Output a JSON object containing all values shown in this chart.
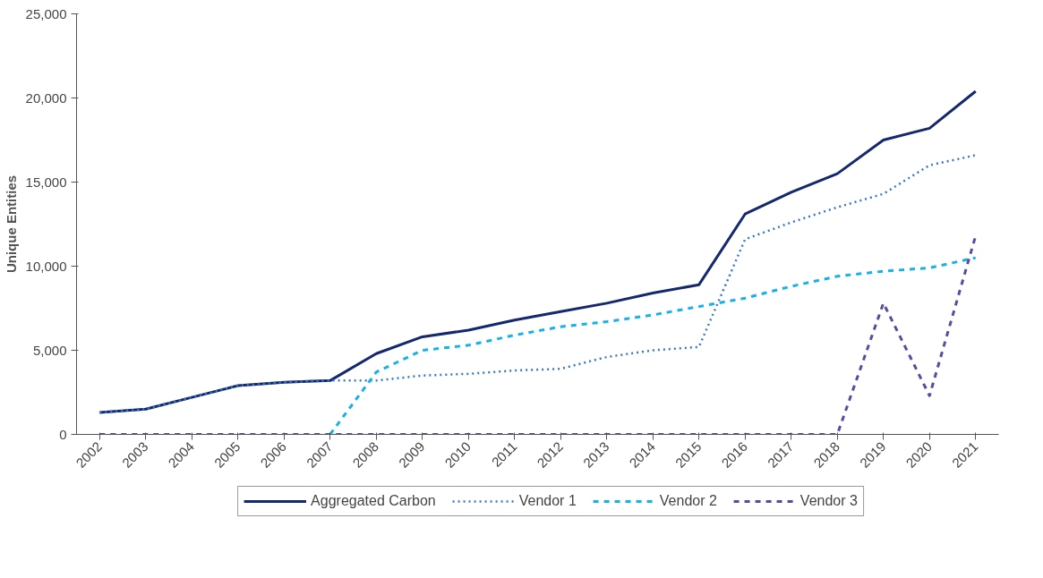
{
  "chart_data": {
    "type": "line",
    "ylabel": "Unique Entities",
    "categories": [
      "2002",
      "2003",
      "2004",
      "2005",
      "2006",
      "2007",
      "2008",
      "2009",
      "2010",
      "2011",
      "2012",
      "2013",
      "2014",
      "2015",
      "2016",
      "2017",
      "2018",
      "2019",
      "2020",
      "2021"
    ],
    "ylim": [
      0,
      25000
    ],
    "yticks": [
      0,
      {
        "value": 5000,
        "label": "5,000"
      },
      {
        "value": 10000,
        "label": "10,000"
      },
      {
        "value": 15000,
        "label": "15,000"
      },
      {
        "value": 20000,
        "label": "20,000"
      },
      {
        "value": 25000,
        "label": "25,000"
      }
    ],
    "grid": false,
    "legend": "bottom",
    "series": [
      {
        "name": "Aggregated Carbon",
        "color": "#13286e",
        "line_style": "solid",
        "values": [
          1300,
          1500,
          2200,
          2900,
          3100,
          3200,
          4800,
          5800,
          6200,
          6800,
          7300,
          7800,
          8400,
          8900,
          13100,
          14400,
          15500,
          17500,
          18200,
          20400
        ]
      },
      {
        "name": "Vendor 1",
        "color": "#3a78c4",
        "line_style": "dotted",
        "values": [
          1300,
          1500,
          2200,
          2900,
          3100,
          3200,
          3200,
          3500,
          3600,
          3800,
          3900,
          4600,
          5000,
          5200,
          11600,
          12600,
          13500,
          14300,
          16000,
          16600
        ]
      },
      {
        "name": "Vendor 2",
        "color": "#17b1e8",
        "line_style": "dashed",
        "values": [
          null,
          null,
          null,
          null,
          null,
          0,
          3700,
          5000,
          5300,
          5900,
          6400,
          6700,
          7100,
          7600,
          8100,
          8800,
          9400,
          9700,
          9900,
          10500
        ]
      },
      {
        "name": "Vendor 3",
        "color": "#5a4aa0",
        "line_style": "dashed",
        "values": [
          0,
          0,
          0,
          0,
          0,
          0,
          0,
          0,
          0,
          0,
          0,
          0,
          0,
          0,
          0,
          0,
          0,
          7800,
          2300,
          11800
        ]
      }
    ]
  }
}
